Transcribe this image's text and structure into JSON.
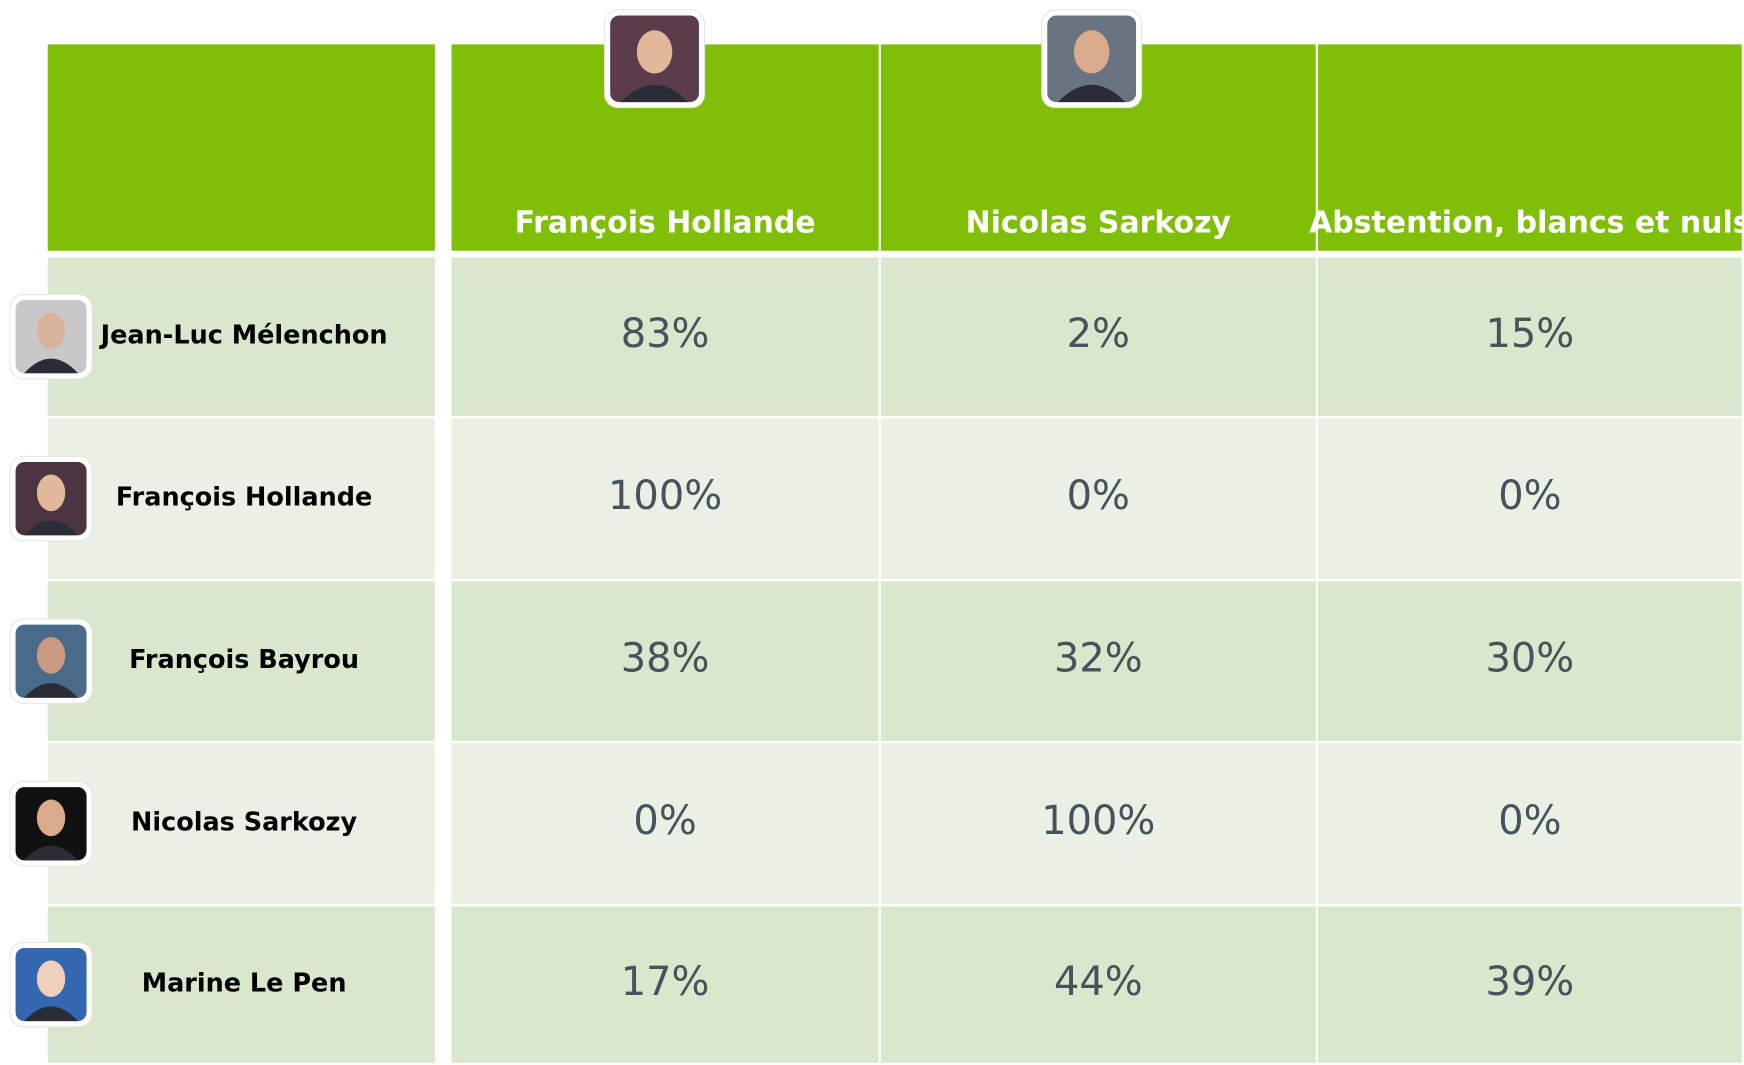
{
  "table": {
    "columns": [
      "François Hollande",
      "Nicolas Sarkozy",
      "Abstention, blancs et nuls"
    ],
    "rows": [
      {
        "name": "Jean-Luc Mélenchon",
        "cells": [
          "83%",
          "2%",
          "15%"
        ]
      },
      {
        "name": "François Hollande",
        "cells": [
          "100%",
          "0%",
          "0%"
        ]
      },
      {
        "name": "François Bayrou",
        "cells": [
          "38%",
          "32%",
          "30%"
        ]
      },
      {
        "name": "Nicolas Sarkozy",
        "cells": [
          "0%",
          "100%",
          "0%"
        ]
      },
      {
        "name": "Marine Le Pen",
        "cells": [
          "17%",
          "44%",
          "39%"
        ]
      }
    ]
  }
}
